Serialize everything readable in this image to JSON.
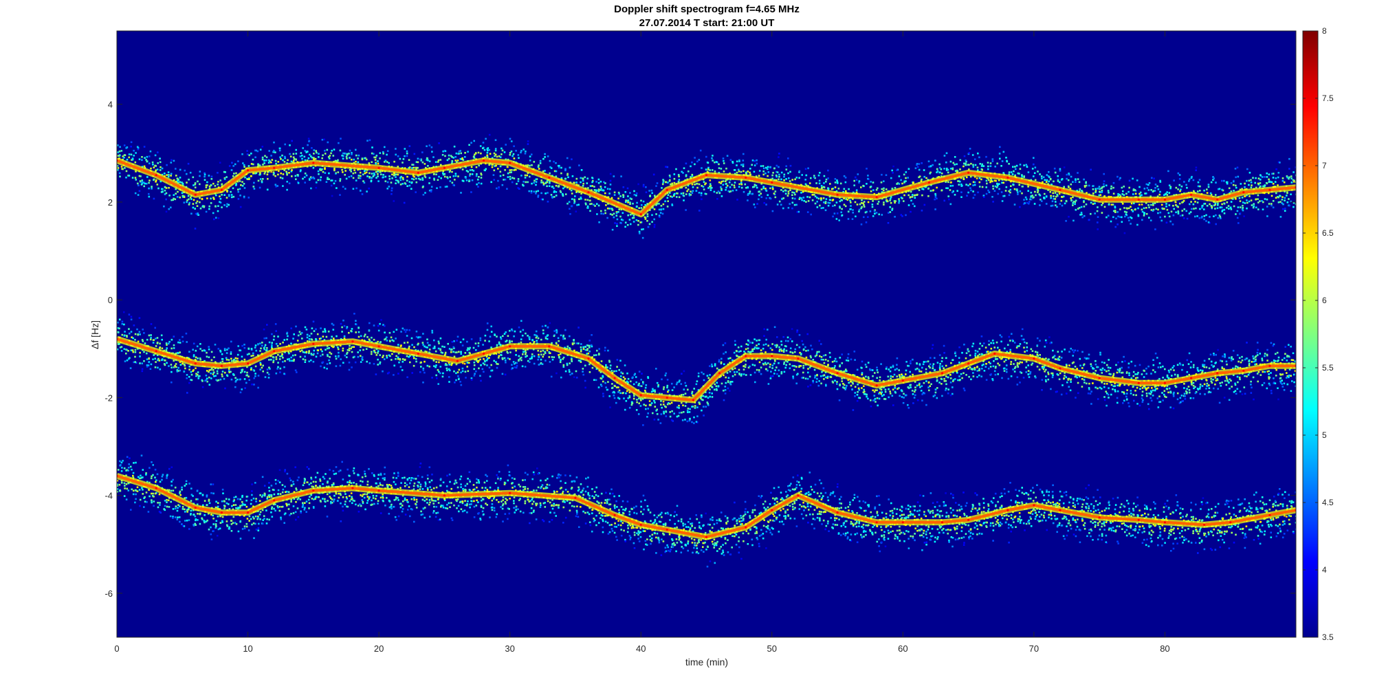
{
  "chart_data": {
    "type": "heatmap",
    "title": "Doppler shift spectrogram f=4.65 MHz",
    "subtitle": "27.07.2014   T start: 21:00 UT",
    "xlabel": "time (min)",
    "ylabel": "Δf [Hz]",
    "xlim": [
      0,
      90
    ],
    "ylim": [
      -6.9,
      5.5
    ],
    "x_ticks": [
      0,
      10,
      20,
      30,
      40,
      50,
      60,
      70,
      80
    ],
    "y_ticks": [
      4,
      2,
      0,
      -2,
      -4,
      -6
    ],
    "colorbar": {
      "colormap": "jet",
      "range": [
        3.5,
        8
      ],
      "ticks": [
        8,
        7.5,
        7,
        6.5,
        6,
        5.5,
        5,
        4.5,
        4,
        3.5
      ]
    },
    "background_color": "#00008f",
    "grid": false,
    "series": [
      {
        "x": [
          0,
          3,
          6,
          8,
          10,
          12,
          15,
          20,
          23,
          25,
          28,
          30,
          33,
          36,
          40,
          42,
          45,
          48,
          50,
          55,
          58,
          62,
          65,
          68,
          72,
          75,
          78,
          80,
          82,
          84,
          86,
          88,
          90
        ],
        "y": [
          2.85,
          2.55,
          2.15,
          2.25,
          2.65,
          2.7,
          2.8,
          2.7,
          2.6,
          2.7,
          2.85,
          2.8,
          2.5,
          2.2,
          1.75,
          2.25,
          2.55,
          2.5,
          2.4,
          2.15,
          2.1,
          2.4,
          2.6,
          2.5,
          2.25,
          2.05,
          2.05,
          2.05,
          2.15,
          2.05,
          2.2,
          2.25,
          2.3
        ]
      },
      {
        "x": [
          0,
          3,
          6,
          8,
          10,
          12,
          15,
          18,
          20,
          23,
          26,
          28,
          30,
          33,
          36,
          38,
          40,
          42,
          44,
          46,
          48,
          50,
          52,
          55,
          58,
          60,
          63,
          65,
          67,
          70,
          72,
          75,
          78,
          80,
          82,
          84,
          86,
          88,
          90
        ],
        "y": [
          -0.8,
          -1.05,
          -1.3,
          -1.35,
          -1.3,
          -1.05,
          -0.9,
          -0.85,
          -0.95,
          -1.1,
          -1.25,
          -1.1,
          -0.95,
          -0.95,
          -1.2,
          -1.6,
          -1.95,
          -2.0,
          -2.05,
          -1.5,
          -1.15,
          -1.15,
          -1.2,
          -1.5,
          -1.75,
          -1.65,
          -1.5,
          -1.3,
          -1.1,
          -1.2,
          -1.4,
          -1.6,
          -1.7,
          -1.7,
          -1.6,
          -1.5,
          -1.45,
          -1.35,
          -1.35
        ]
      },
      {
        "x": [
          0,
          3,
          6,
          8,
          10,
          12,
          15,
          18,
          20,
          25,
          30,
          35,
          38,
          40,
          42,
          45,
          48,
          50,
          52,
          55,
          58,
          60,
          63,
          65,
          68,
          70,
          72,
          75,
          78,
          80,
          83,
          85,
          88,
          90
        ],
        "y": [
          -3.6,
          -3.85,
          -4.25,
          -4.35,
          -4.35,
          -4.1,
          -3.9,
          -3.85,
          -3.9,
          -4.0,
          -3.95,
          -4.05,
          -4.4,
          -4.6,
          -4.7,
          -4.85,
          -4.65,
          -4.3,
          -4.0,
          -4.35,
          -4.55,
          -4.55,
          -4.55,
          -4.5,
          -4.3,
          -4.2,
          -4.3,
          -4.45,
          -4.5,
          -4.55,
          -4.6,
          -4.55,
          -4.4,
          -4.3
        ]
      }
    ]
  }
}
